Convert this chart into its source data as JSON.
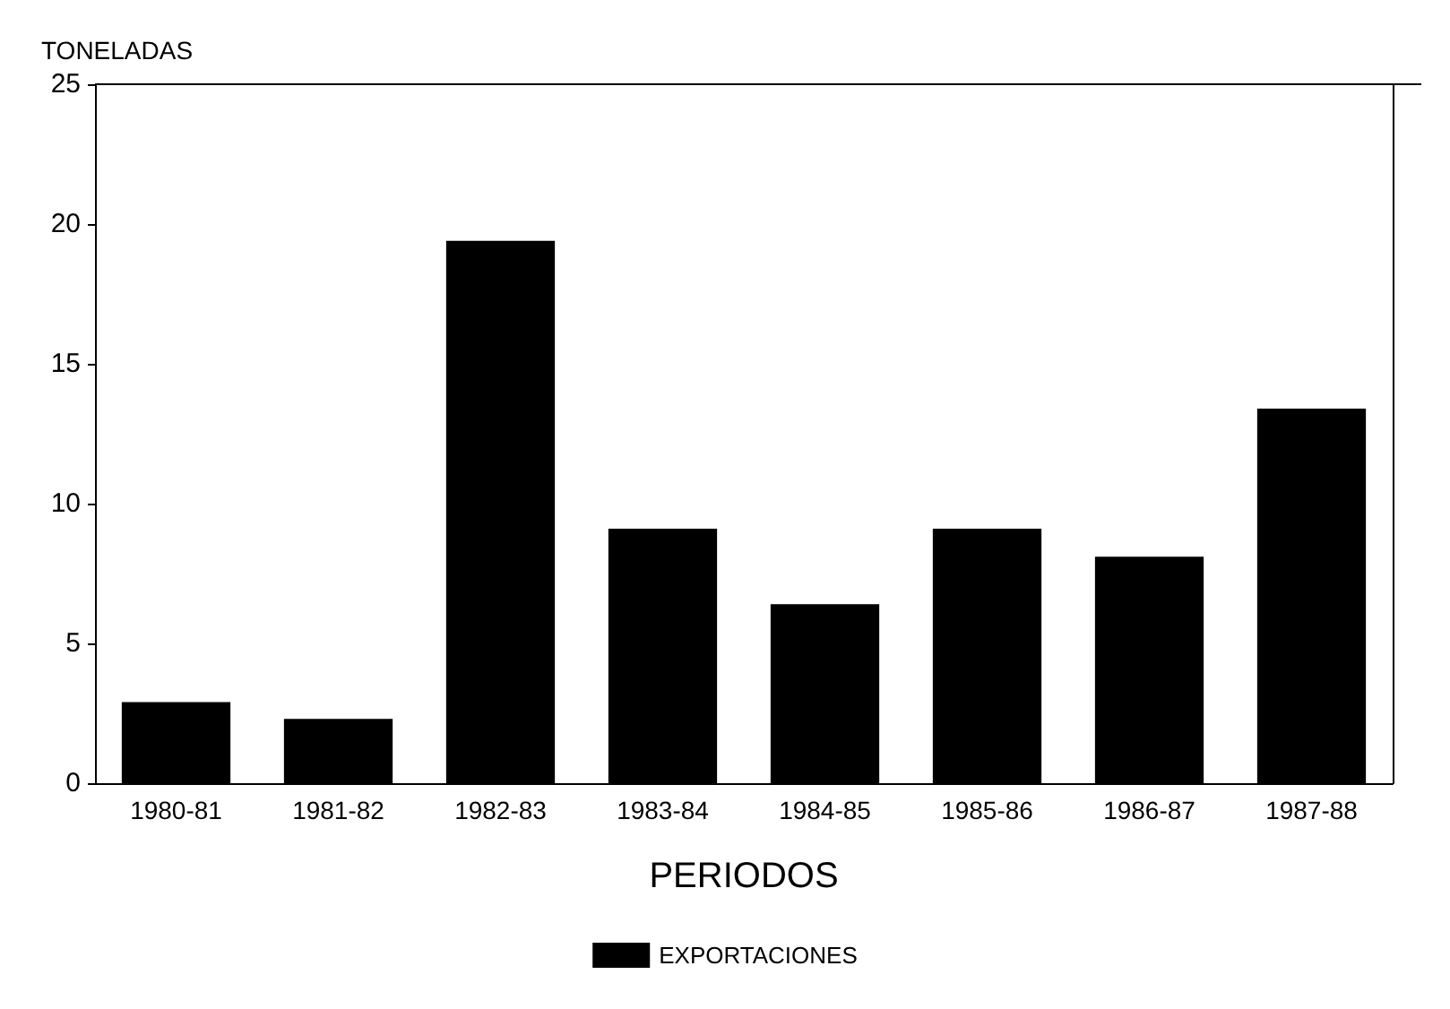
{
  "chart_data": {
    "type": "bar",
    "ylabel": "TONELADAS",
    "xlabel": "PERIODOS",
    "categories": [
      "1980-81",
      "1981-82",
      "1982-83",
      "1983-84",
      "1984-85",
      "1985-86",
      "1986-87",
      "1987-88"
    ],
    "series": [
      {
        "name": "EXPORTACIONES",
        "color": "#000000",
        "values": [
          2.9,
          2.3,
          19.4,
          9.1,
          6.4,
          9.1,
          8.1,
          13.4
        ]
      }
    ],
    "ylim": [
      0,
      25
    ],
    "yticks": [
      0,
      5,
      10,
      15,
      20,
      25
    ],
    "grid": false,
    "legend": "bottom"
  }
}
